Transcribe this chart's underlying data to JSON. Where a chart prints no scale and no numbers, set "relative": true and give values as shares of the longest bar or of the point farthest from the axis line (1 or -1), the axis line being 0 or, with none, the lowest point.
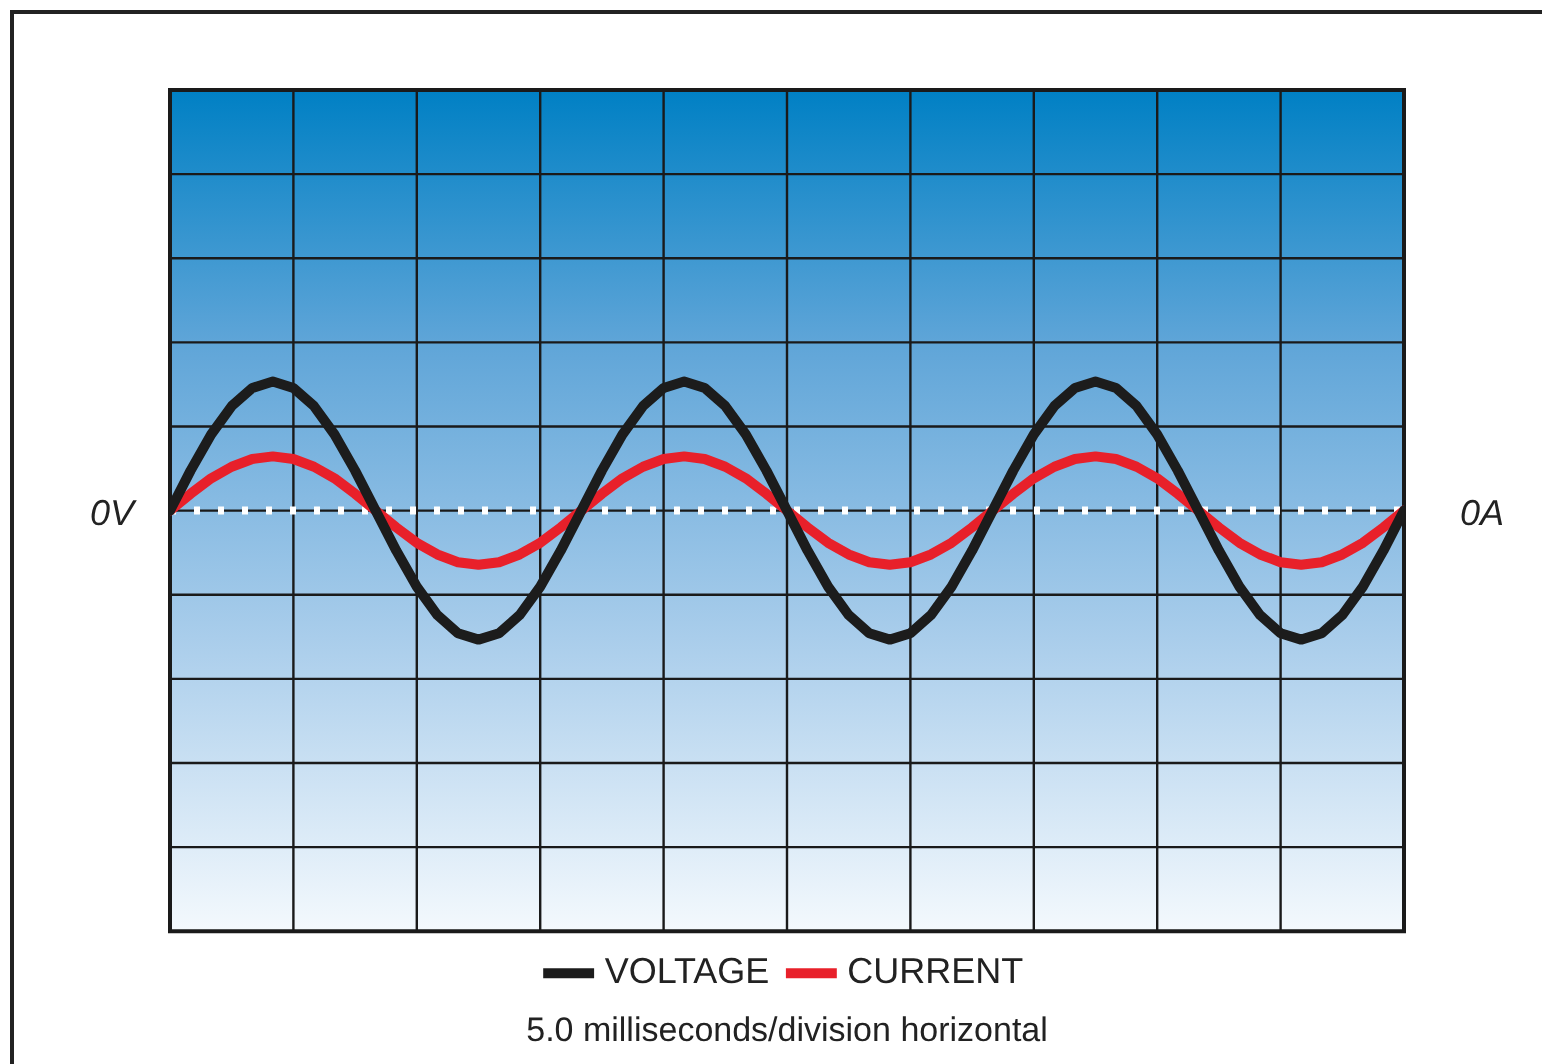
{
  "chart_data": {
    "type": "line",
    "relative": true,
    "annotations": [
      "0A",
      "5.0 milliseconds/division horizontal"
    ],
    "categories": [
      null,
      null,
      null,
      null,
      null,
      null,
      null,
      null,
      null,
      null,
      null,
      null,
      null,
      null,
      null,
      null,
      null,
      null,
      null,
      null,
      null,
      null,
      null,
      null,
      null,
      null,
      null,
      null,
      null,
      null,
      null,
      null,
      null,
      null,
      null,
      null,
      null,
      null,
      null,
      null,
      null,
      null,
      null,
      null,
      null,
      null,
      null,
      null,
      null,
      null,
      null,
      null,
      null,
      null,
      null,
      null,
      null,
      null,
      null,
      null,
      null
    ],
    "series": [
      {
        "name": "VOLTAGE",
        "color": "#1c1c1c",
        "values": [
          0,
          0.31,
          0.59,
          0.81,
          0.95,
          1,
          0.95,
          0.81,
          0.59,
          0.31,
          0,
          -0.31,
          -0.59,
          -0.81,
          -0.95,
          -1,
          -0.95,
          -0.81,
          -0.59,
          -0.31,
          0,
          0.31,
          0.59,
          0.81,
          0.95,
          1,
          0.95,
          0.81,
          0.59,
          0.31,
          0,
          -0.31,
          -0.59,
          -0.81,
          -0.95,
          -1,
          -0.95,
          -0.81,
          -0.59,
          -0.31,
          0,
          0.31,
          0.59,
          0.81,
          0.95,
          1,
          0.95,
          0.81,
          0.59,
          0.31,
          0,
          -0.31,
          -0.59,
          -0.81,
          -0.95,
          -1,
          -0.95,
          -0.81,
          -0.59,
          -0.31,
          0
        ]
      },
      {
        "name": "CURRENT",
        "color": "#e8202a",
        "values": [
          0,
          0.13,
          0.25,
          0.34,
          0.4,
          0.42,
          0.4,
          0.34,
          0.25,
          0.13,
          0,
          -0.13,
          -0.25,
          -0.34,
          -0.4,
          -0.42,
          -0.4,
          -0.34,
          -0.25,
          -0.13,
          0,
          0.13,
          0.25,
          0.34,
          0.4,
          0.42,
          0.4,
          0.34,
          0.25,
          0.13,
          0,
          -0.13,
          -0.25,
          -0.34,
          -0.4,
          -0.42,
          -0.4,
          -0.34,
          -0.25,
          -0.13,
          0,
          0.13,
          0.25,
          0.34,
          0.4,
          0.42,
          0.4,
          0.34,
          0.25,
          0.13,
          0,
          -0.13,
          -0.25,
          -0.34,
          -0.4,
          -0.42,
          -0.4,
          -0.34,
          -0.25,
          -0.13,
          0
        ]
      }
    ],
    "ref_lines": [
      {
        "axis": "y",
        "value": 0,
        "label": "0V",
        "color": "#ffffff",
        "line_style": "dotted"
      }
    ],
    "grid": true,
    "legend": "bottom",
    "marker": "none",
    "line_style": "solid"
  }
}
